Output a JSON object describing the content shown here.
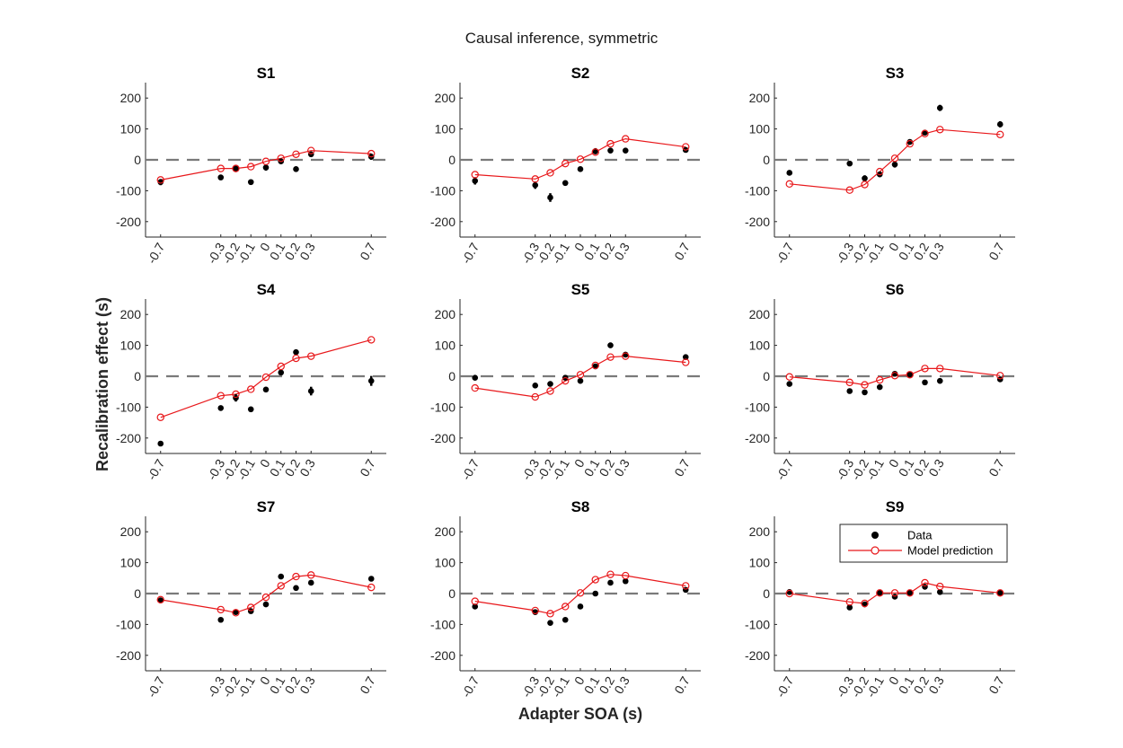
{
  "figure": {
    "title": "Causal inference, symmetric",
    "xlabel": "Adapter SOA (s)",
    "ylabel": "Recalibration effect (s)"
  },
  "legend": {
    "placement": "inside panel S9, top-right",
    "entries": [
      {
        "label": "Data",
        "marker": "filled-black-circle"
      },
      {
        "label": "Model prediction",
        "marker": "red-open-circle-with-line"
      }
    ]
  },
  "colors": {
    "data": "#000000",
    "model": "#e8181b",
    "zero_line": "#7a7a7a",
    "axes": "#262626"
  },
  "chart_data": {
    "type": "scatter",
    "x": [
      -0.7,
      -0.3,
      -0.2,
      -0.1,
      0,
      0.1,
      0.2,
      0.3,
      0.7
    ],
    "x_tick_labels": [
      "-0.7",
      "-0.3",
      "-0.2",
      "-0.1",
      "0",
      "0.1",
      "0.2",
      "0.3",
      "0.7"
    ],
    "xlim": [
      -0.8,
      0.8
    ],
    "ylim": [
      -250,
      250
    ],
    "y_ticks": [
      200,
      100,
      0,
      -100,
      -200
    ],
    "y_tick_labels": [
      "200",
      "100",
      "0",
      "-100",
      "-200"
    ],
    "zero_reference": "dashed horizontal line at y = 0",
    "grid": false,
    "panels": [
      {
        "title": "S1",
        "data": [
          -72,
          -57,
          -28,
          -72,
          -25,
          -5,
          -30,
          18,
          10
        ],
        "data_err": [
          10,
          8,
          8,
          8,
          10,
          8,
          8,
          8,
          10
        ],
        "model": [
          -65,
          -28,
          -28,
          -22,
          -5,
          5,
          18,
          30,
          20
        ]
      },
      {
        "title": "S2",
        "data": [
          -68,
          -82,
          -122,
          -75,
          -30,
          28,
          30,
          30,
          32
        ],
        "data_err": [
          12,
          12,
          14,
          8,
          8,
          10,
          8,
          8,
          8
        ],
        "model": [
          -48,
          -62,
          -42,
          -12,
          2,
          25,
          52,
          68,
          42
        ]
      },
      {
        "title": "S3",
        "data": [
          -42,
          -12,
          -60,
          -47,
          -15,
          58,
          88,
          168,
          115
        ],
        "data_err": [
          6,
          6,
          10,
          8,
          10,
          8,
          8,
          10,
          10
        ],
        "model": [
          -78,
          -98,
          -80,
          -38,
          5,
          52,
          85,
          98,
          82
        ]
      },
      {
        "title": "S4",
        "data": [
          -218,
          -103,
          -70,
          -107,
          -43,
          12,
          78,
          -48,
          -15
        ],
        "data_err": [
          8,
          8,
          12,
          8,
          8,
          8,
          8,
          14,
          16
        ],
        "model": [
          -133,
          -63,
          -58,
          -42,
          -3,
          32,
          58,
          65,
          118
        ]
      },
      {
        "title": "S5",
        "data": [
          -5,
          -30,
          -25,
          -5,
          -15,
          32,
          100,
          70,
          62
        ],
        "data_err": [
          6,
          6,
          6,
          6,
          8,
          8,
          8,
          8,
          8
        ],
        "model": [
          -38,
          -67,
          -48,
          -15,
          5,
          35,
          62,
          65,
          45
        ]
      },
      {
        "title": "S6",
        "data": [
          -25,
          -48,
          -52,
          -35,
          8,
          5,
          -20,
          -15,
          -10
        ],
        "data_err": [
          6,
          6,
          6,
          6,
          6,
          6,
          6,
          6,
          6
        ],
        "model": [
          -2,
          -20,
          -28,
          -12,
          2,
          5,
          25,
          25,
          2
        ]
      },
      {
        "title": "S7",
        "data": [
          -22,
          -85,
          -60,
          -57,
          -35,
          55,
          18,
          35,
          48
        ],
        "data_err": [
          6,
          8,
          6,
          8,
          8,
          8,
          8,
          6,
          6
        ],
        "model": [
          -20,
          -52,
          -62,
          -45,
          -12,
          25,
          55,
          60,
          20
        ]
      },
      {
        "title": "S8",
        "data": [
          -42,
          -60,
          -95,
          -85,
          -42,
          0,
          35,
          40,
          12
        ],
        "data_err": [
          6,
          8,
          8,
          8,
          8,
          8,
          6,
          6,
          8
        ],
        "model": [
          -25,
          -55,
          -65,
          -42,
          2,
          45,
          62,
          58,
          25
        ]
      },
      {
        "title": "S9",
        "data": [
          5,
          -45,
          -35,
          2,
          -10,
          2,
          22,
          5,
          2
        ],
        "data_err": [
          4,
          6,
          6,
          4,
          6,
          4,
          6,
          4,
          4
        ],
        "model": [
          0,
          -27,
          -32,
          2,
          2,
          2,
          35,
          23,
          2
        ]
      }
    ]
  }
}
